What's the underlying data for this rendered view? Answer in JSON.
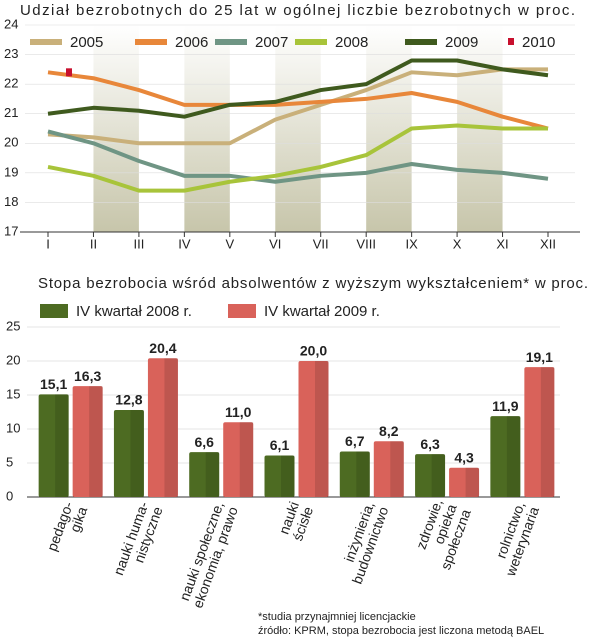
{
  "chart_data": [
    {
      "type": "line",
      "title": "Udział bezrobotnych do 25 lat w ogólnej liczbie bezrobotnych w proc.",
      "categories": [
        "I",
        "II",
        "III",
        "IV",
        "V",
        "VI",
        "VII",
        "VIII",
        "IX",
        "X",
        "XI",
        "XII"
      ],
      "ylim": [
        17,
        24
      ],
      "yticks": [
        17,
        18,
        19,
        20,
        21,
        22,
        23,
        24
      ],
      "series": [
        {
          "name": "2005",
          "color": "#c9b07a",
          "values": [
            20.3,
            20.2,
            20.0,
            20.0,
            20.0,
            20.8,
            21.3,
            21.8,
            22.4,
            22.3,
            22.5,
            22.5
          ]
        },
        {
          "name": "2006",
          "color": "#e8873a",
          "values": [
            22.4,
            22.2,
            21.8,
            21.3,
            21.3,
            21.3,
            21.4,
            21.5,
            21.7,
            21.4,
            20.9,
            20.5
          ]
        },
        {
          "name": "2007",
          "color": "#6f9584",
          "values": [
            20.4,
            20.0,
            19.4,
            18.9,
            18.9,
            18.7,
            18.9,
            19.0,
            19.3,
            19.1,
            19.0,
            18.8
          ]
        },
        {
          "name": "2008",
          "color": "#a8c43a",
          "values": [
            19.2,
            18.9,
            18.4,
            18.4,
            18.7,
            18.9,
            19.2,
            19.6,
            20.5,
            20.6,
            20.5,
            20.5
          ]
        },
        {
          "name": "2009",
          "color": "#3f5a1e",
          "values": [
            21.0,
            21.2,
            21.1,
            20.9,
            21.3,
            21.4,
            21.8,
            22.0,
            22.8,
            22.8,
            22.5,
            22.3
          ]
        },
        {
          "name": "2010",
          "color": "#c8102e",
          "values": [
            22.4,
            null,
            null,
            null,
            null,
            null,
            null,
            null,
            null,
            null,
            null,
            null
          ]
        }
      ]
    },
    {
      "type": "bar",
      "title": "Stopa bezrobocia wśród absolwentów z wyższym wykształceniem* w proc.",
      "categories": [
        [
          "pedago-",
          "gika"
        ],
        [
          "nauki huma-",
          "nistyczne"
        ],
        [
          "nauki społeczne,",
          "ekonomia, prawo"
        ],
        [
          "nauki",
          "ścisłe"
        ],
        [
          "inżynieria,",
          "budownictwo"
        ],
        [
          "zdrowie,",
          "opieka",
          "społeczna"
        ],
        [
          "rolnictwo,",
          "weterynaria"
        ]
      ],
      "ylim": [
        0,
        25
      ],
      "yticks": [
        0,
        5,
        10,
        15,
        20,
        25
      ],
      "series": [
        {
          "name": "IV kwartał 2008 r.",
          "color": "#4d6b22",
          "values": [
            15.1,
            12.8,
            6.6,
            6.1,
            6.7,
            6.3,
            11.9
          ],
          "value_labels": [
            "15,1",
            "12,8",
            "6,6",
            "6,1",
            "6,7",
            "6,3",
            "11,9"
          ]
        },
        {
          "name": "IV kwartał 2009 r.",
          "color": "#d9625a",
          "values": [
            16.3,
            20.4,
            11.0,
            20.0,
            8.2,
            4.3,
            19.1
          ],
          "value_labels": [
            "16,3",
            "20,4",
            "11,0",
            "20,0",
            "8,2",
            "4,3",
            "19,1"
          ]
        }
      ],
      "notes": [
        "*studia przynajmniej licencjackie",
        "źródło: KPRM,  stopa bezrobocia  jest liczona metodą BAEL"
      ]
    }
  ]
}
